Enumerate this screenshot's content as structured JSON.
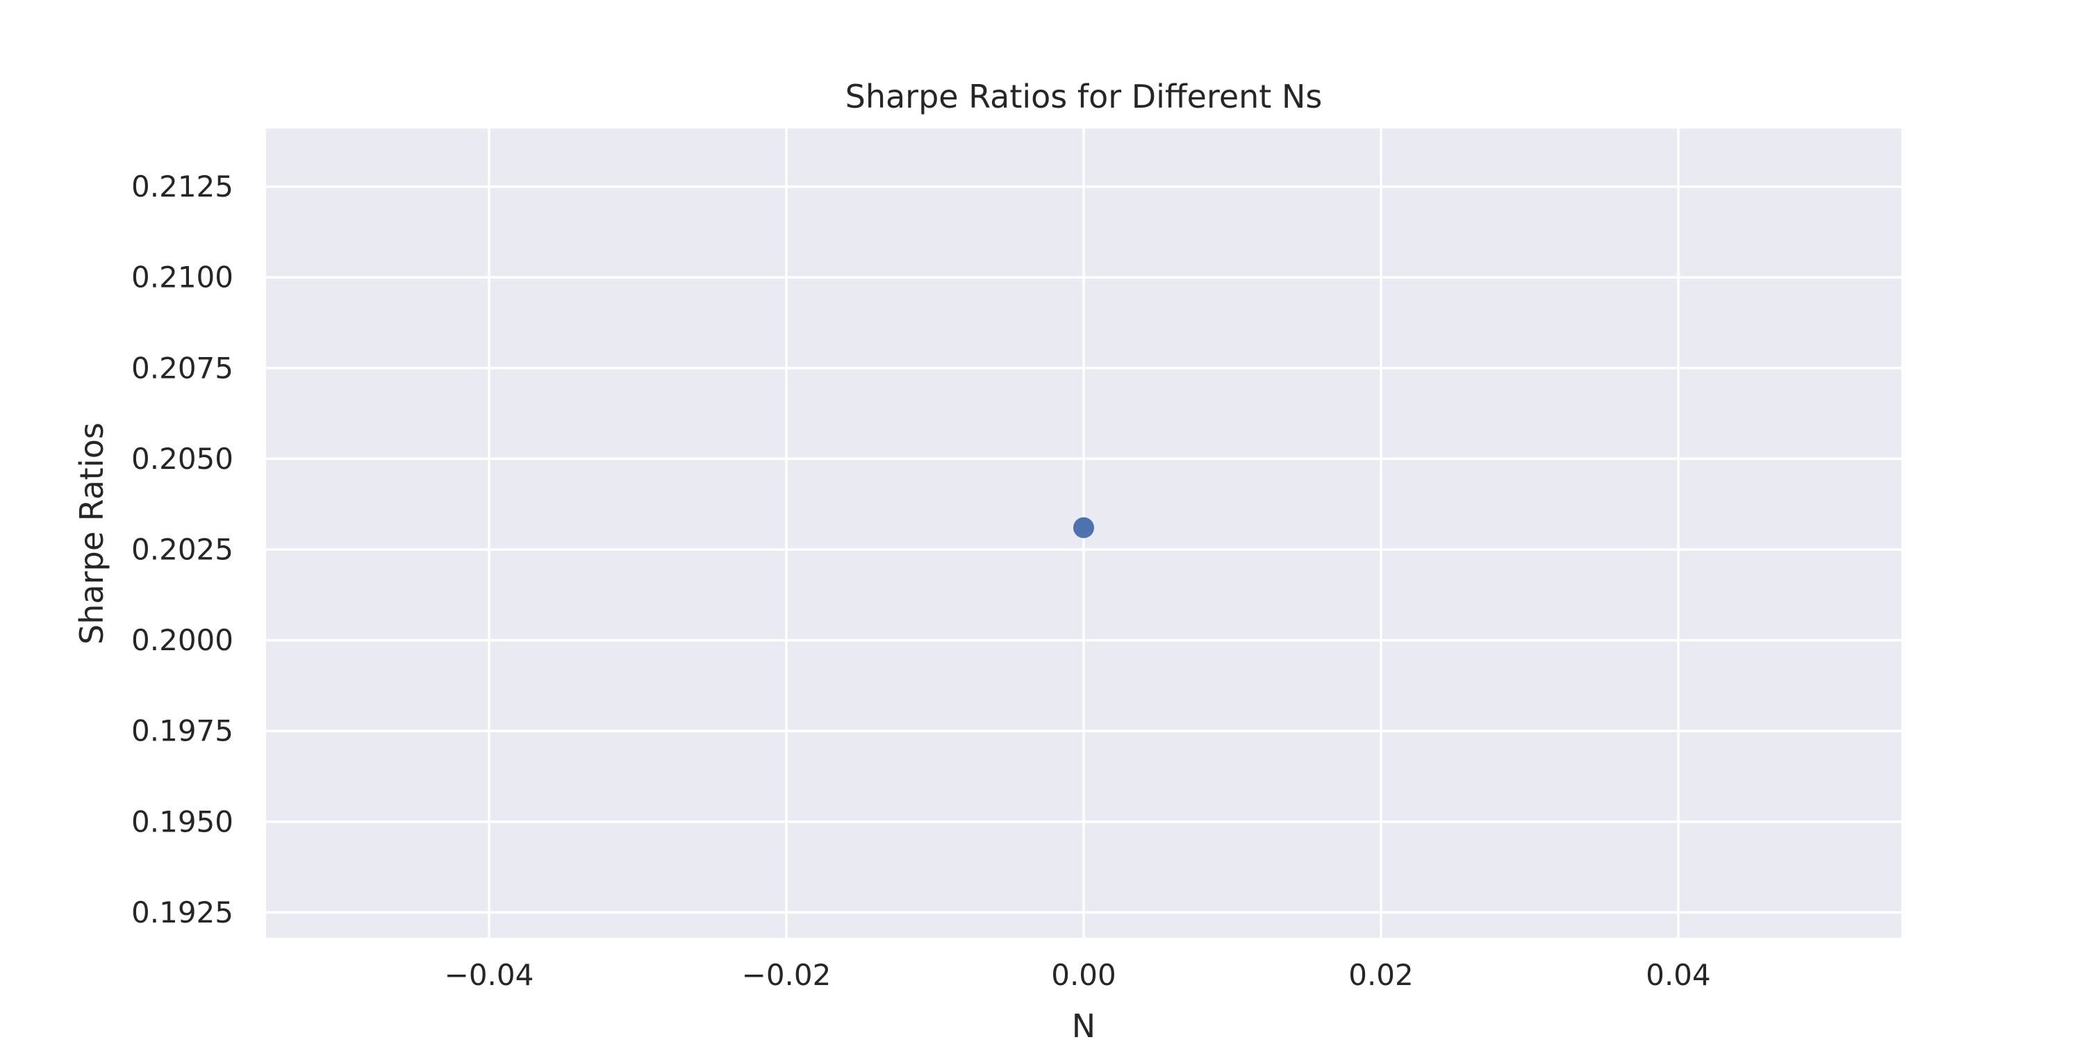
{
  "chart_data": {
    "type": "scatter",
    "title": "Sharpe Ratios for Different Ns",
    "xlabel": "N",
    "ylabel": "Sharpe Ratios",
    "xlim": [
      -0.055,
      0.055
    ],
    "ylim": [
      0.1918,
      0.2141
    ],
    "x_ticks": [
      {
        "value": -0.04,
        "label": "−0.04"
      },
      {
        "value": -0.02,
        "label": "−0.02"
      },
      {
        "value": 0.0,
        "label": "0.00"
      },
      {
        "value": 0.02,
        "label": "0.02"
      },
      {
        "value": 0.04,
        "label": "0.04"
      }
    ],
    "y_ticks": [
      {
        "value": 0.1925,
        "label": "0.1925"
      },
      {
        "value": 0.195,
        "label": "0.1950"
      },
      {
        "value": 0.1975,
        "label": "0.1975"
      },
      {
        "value": 0.2,
        "label": "0.2000"
      },
      {
        "value": 0.2025,
        "label": "0.2025"
      },
      {
        "value": 0.205,
        "label": "0.2050"
      },
      {
        "value": 0.2075,
        "label": "0.2075"
      },
      {
        "value": 0.21,
        "label": "0.2100"
      },
      {
        "value": 0.2125,
        "label": "0.2125"
      }
    ],
    "grid": true,
    "legend": "none",
    "series": [
      {
        "color": "#4c72b0",
        "points": [
          {
            "x": 0.0,
            "y": 0.2031
          }
        ]
      }
    ],
    "background_color": "#eaeaf2",
    "grid_color": "#ffffff"
  }
}
